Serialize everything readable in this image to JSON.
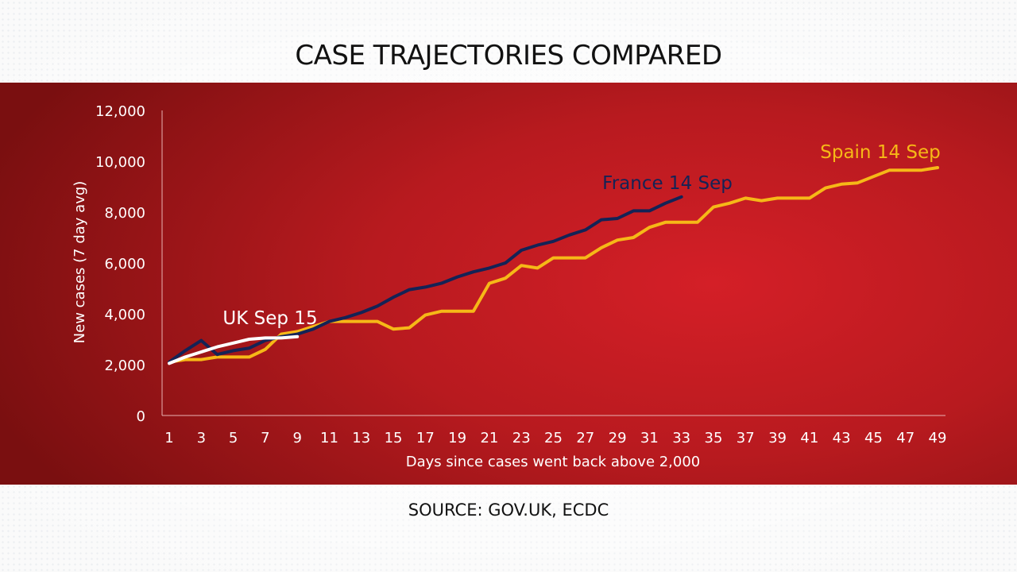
{
  "title": "CASE TRAJECTORIES COMPARED",
  "source": "SOURCE: GOV.UK, ECDC",
  "chart_data": {
    "type": "line",
    "xlabel": "Days since cases went back above 2,000",
    "ylabel": "New cases (7 day avg)",
    "xlim": [
      1,
      49
    ],
    "ylim": [
      0,
      12000
    ],
    "x_ticks": [
      1,
      3,
      5,
      7,
      9,
      11,
      13,
      15,
      17,
      19,
      21,
      23,
      25,
      27,
      29,
      31,
      33,
      35,
      37,
      39,
      41,
      43,
      45,
      47,
      49
    ],
    "y_ticks": [
      0,
      2000,
      4000,
      6000,
      8000,
      10000,
      12000
    ],
    "x_tick_labels": [
      "1",
      "3",
      "5",
      "7",
      "9",
      "11",
      "13",
      "15",
      "17",
      "19",
      "21",
      "23",
      "25",
      "27",
      "29",
      "31",
      "33",
      "35",
      "37",
      "39",
      "41",
      "43",
      "45",
      "47",
      "49"
    ],
    "y_tick_labels": [
      "0",
      "2,000",
      "4,000",
      "6,000",
      "8,000",
      "10,000",
      "12,000"
    ],
    "grid": false,
    "series": [
      {
        "name": "Spain 14 Sep",
        "color": "#f6b817",
        "x": [
          1,
          2,
          3,
          4,
          5,
          6,
          7,
          8,
          9,
          10,
          11,
          12,
          13,
          14,
          15,
          16,
          17,
          18,
          19,
          20,
          21,
          22,
          23,
          24,
          25,
          26,
          27,
          28,
          29,
          30,
          31,
          32,
          33,
          34,
          35,
          36,
          37,
          38,
          39,
          40,
          41,
          42,
          43,
          44,
          45,
          46,
          47,
          48,
          49
        ],
        "values": [
          2100,
          2200,
          2200,
          2300,
          2300,
          2300,
          2600,
          3200,
          3300,
          3500,
          3700,
          3700,
          3700,
          3700,
          3400,
          3450,
          3950,
          4100,
          4100,
          4100,
          5200,
          5400,
          5900,
          5800,
          6200,
          6200,
          6200,
          6600,
          6900,
          7000,
          7400,
          7600,
          7600,
          7600,
          8200,
          8350,
          8550,
          8450,
          8550,
          8550,
          8550,
          8950,
          9100,
          9150,
          9400,
          9650,
          9650,
          9650,
          9750
        ]
      },
      {
        "name": "France 14 Sep",
        "color": "#142356",
        "x": [
          1,
          2,
          3,
          4,
          5,
          6,
          7,
          8,
          9,
          10,
          11,
          12,
          13,
          14,
          15,
          16,
          17,
          18,
          19,
          20,
          21,
          22,
          23,
          24,
          25,
          26,
          27,
          28,
          29,
          30,
          31,
          32,
          33
        ],
        "values": [
          2100,
          2550,
          2950,
          2400,
          2550,
          2650,
          2950,
          3100,
          3200,
          3400,
          3700,
          3850,
          4050,
          4300,
          4650,
          4950,
          5050,
          5200,
          5450,
          5650,
          5800,
          6000,
          6500,
          6700,
          6850,
          7100,
          7300,
          7700,
          7750,
          8050,
          8050,
          8350,
          8600
        ]
      },
      {
        "name": "UK Sep 15",
        "color": "#ffffff",
        "x": [
          1,
          2,
          3,
          4,
          5,
          6,
          7,
          8,
          9
        ],
        "values": [
          2050,
          2300,
          2500,
          2700,
          2850,
          3000,
          3050,
          3050,
          3100
        ]
      }
    ]
  }
}
